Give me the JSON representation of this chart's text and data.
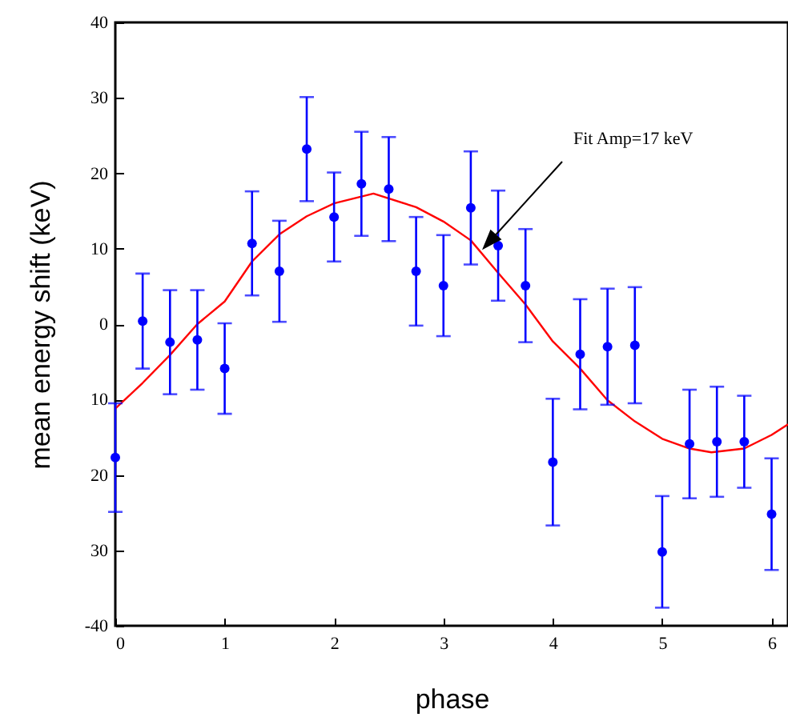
{
  "chart_data": {
    "type": "scatter",
    "xlabel": "phase",
    "ylabel": "mean energy shift   (keV)",
    "xlim": [
      0,
      6.15
    ],
    "ylim": [
      -40,
      40
    ],
    "xticks": [
      0,
      1,
      2,
      3,
      4,
      5,
      6
    ],
    "yticks": [
      {
        "value": -40,
        "label": "-40"
      },
      {
        "value": -30,
        "label": "30"
      },
      {
        "value": -20,
        "label": "20"
      },
      {
        "value": -10,
        "label": "10"
      },
      0,
      10,
      20,
      30,
      40
    ],
    "grid": false,
    "annotations": [
      "Fit Amp=17 keV"
    ],
    "series": [
      {
        "color": "#0000ff",
        "marker": "circle",
        "x": [
          0,
          0.25,
          0.5,
          0.75,
          1,
          1.25,
          1.5,
          1.75,
          2,
          2.25,
          2.5,
          2.75,
          3,
          3.25,
          3.5,
          3.75,
          4,
          4.25,
          4.5,
          4.75,
          5,
          5.25,
          5.5,
          5.75,
          6
        ],
        "values": [
          -17.7,
          0.4,
          -2.4,
          -2.1,
          -5.9,
          10.7,
          7.0,
          23.2,
          14.2,
          18.6,
          17.9,
          7.0,
          5.1,
          15.4,
          10.4,
          5.1,
          -18.3,
          -4.0,
          -3.0,
          -2.8,
          -30.2,
          -15.9,
          -15.6,
          -15.6,
          -25.2
        ],
        "errors": [
          7.2,
          6.3,
          6.9,
          6.6,
          6.0,
          6.9,
          6.7,
          6.9,
          5.9,
          6.9,
          6.9,
          7.2,
          6.7,
          7.5,
          7.3,
          7.5,
          8.4,
          7.3,
          7.7,
          7.7,
          7.4,
          7.2,
          7.3,
          6.1,
          7.4
        ]
      },
      {
        "type": "line",
        "color": "#ff0000",
        "x": [
          0,
          0.25,
          0.5,
          0.75,
          1,
          1.25,
          1.5,
          1.75,
          2,
          2.36,
          2.75,
          3,
          3.25,
          3.5,
          3.75,
          4,
          4.25,
          4.5,
          4.75,
          5,
          5.25,
          5.45,
          5.75,
          6,
          6.15
        ],
        "values": [
          -11.2,
          -7.8,
          -4.1,
          0.0,
          3.0,
          8.3,
          11.9,
          14.3,
          16.0,
          17.3,
          15.5,
          13.6,
          11.1,
          6.8,
          2.6,
          -2.3,
          -5.9,
          -10.1,
          -12.9,
          -15.2,
          -16.5,
          -17.0,
          -16.5,
          -14.7,
          -13.3
        ]
      }
    ]
  }
}
